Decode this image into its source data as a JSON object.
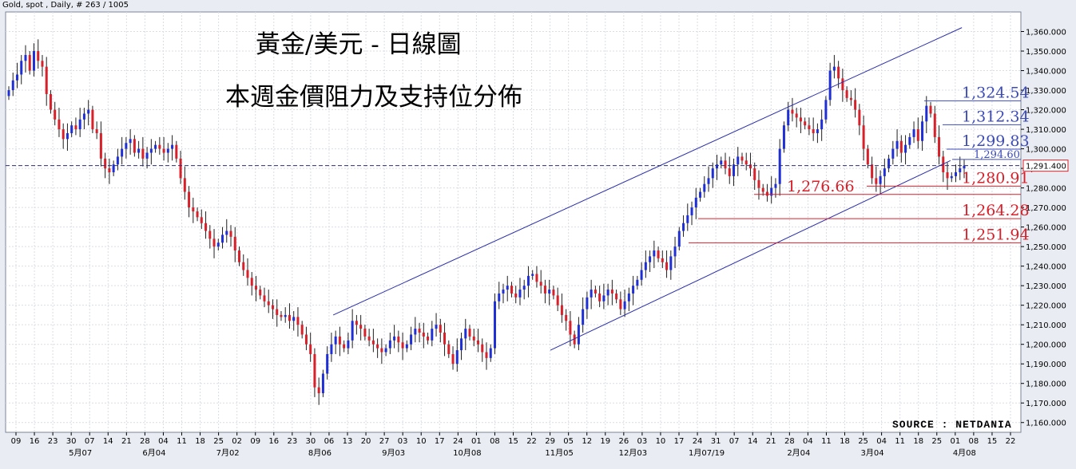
{
  "header": {
    "instrument": "Gold, spot , Daily, # 263 / 1005"
  },
  "titles": {
    "line1": "黃金/美元 - 日線圖",
    "line2": "本週金價阻力及支持位分佈"
  },
  "source": "SOURCE : NETDANIA",
  "colors": {
    "up": "#1f2fd6",
    "down": "#d8202a",
    "channel": "#2b2fa8",
    "resistance": "#3c4bb8",
    "support": "#d8202a",
    "grid": "#d9dde6",
    "bg": "#ffffff"
  },
  "chart_data": {
    "type": "candlestick",
    "ylim": [
      1155,
      1370
    ],
    "y_ticks": [
      "1,360.000",
      "1,350.000",
      "1,340.000",
      "1,330.000",
      "1,320.000",
      "1,310.000",
      "1,300.000",
      "1,290.000",
      "1,280.000",
      "1,270.000",
      "1,260.000",
      "1,250.000",
      "1,240.000",
      "1,230.000",
      "1,220.000",
      "1,210.000",
      "1,200.000",
      "1,190.000",
      "1,180.000",
      "1,170.000",
      "1,160.000"
    ],
    "x_ticks": [
      "09",
      "16",
      "23",
      "30",
      "07",
      "14",
      "21",
      "28",
      "04",
      "11",
      "18",
      "25",
      "02",
      "09",
      "16",
      "23",
      "30",
      "06",
      "13",
      "20",
      "27",
      "03",
      "10",
      "17",
      "24",
      "01",
      "08",
      "15",
      "22",
      "29",
      "05",
      "12",
      "19",
      "26",
      "03",
      "10",
      "17",
      "24",
      "31",
      "07",
      "14",
      "21",
      "28",
      "04",
      "11",
      "18",
      "25",
      "04",
      "11",
      "18",
      "25",
      "01",
      "08",
      "15",
      "22"
    ],
    "month_labels": [
      "5月07",
      "6月04",
      "7月02",
      "8月06",
      "9月03",
      "10月08",
      "11月05",
      "12月03",
      "1月07/19",
      "2月04",
      "3月04",
      "4月08"
    ],
    "current_price": {
      "label": "1,291.400",
      "value": 1291.4
    },
    "resistance_levels": [
      {
        "label": "1,324.54",
        "value": 1324.54
      },
      {
        "label": "1,312.34",
        "value": 1312.34
      },
      {
        "label": "1,299.83",
        "value": 1299.83
      },
      {
        "label": "1,294.60",
        "value": 1294.6
      }
    ],
    "support_levels": [
      {
        "label": "1,280.91",
        "value": 1280.91
      },
      {
        "label": "1,276.66",
        "value": 1276.66
      },
      {
        "label": "1,264.28",
        "value": 1264.28
      },
      {
        "label": "1,251.94",
        "value": 1251.94
      }
    ],
    "channel": {
      "upper": [
        {
          "date": "2018-08-28",
          "value": 1215
        },
        {
          "date": "2019-04-05",
          "value": 1362
        }
      ],
      "lower": [
        {
          "date": "2018-11-12",
          "value": 1197
        },
        {
          "date": "2019-04-01",
          "value": 1294
        }
      ]
    },
    "closes": [
      1330,
      1335,
      1338,
      1345,
      1348,
      1340,
      1350,
      1345,
      1342,
      1328,
      1320,
      1315,
      1310,
      1305,
      1308,
      1312,
      1310,
      1315,
      1318,
      1320,
      1310,
      1308,
      1295,
      1290,
      1288,
      1292,
      1296,
      1300,
      1303,
      1305,
      1298,
      1300,
      1295,
      1298,
      1300,
      1302,
      1300,
      1298,
      1300,
      1302,
      1295,
      1285,
      1278,
      1270,
      1268,
      1265,
      1262,
      1258,
      1254,
      1250,
      1252,
      1256,
      1258,
      1255,
      1248,
      1242,
      1238,
      1234,
      1230,
      1228,
      1225,
      1222,
      1220,
      1218,
      1215,
      1214,
      1215,
      1212,
      1214,
      1210,
      1205,
      1200,
      1195,
      1178,
      1175,
      1185,
      1195,
      1200,
      1204,
      1200,
      1198,
      1202,
      1212,
      1210,
      1208,
      1204,
      1202,
      1200,
      1198,
      1196,
      1198,
      1202,
      1204,
      1201,
      1198,
      1200,
      1205,
      1208,
      1206,
      1204,
      1202,
      1208,
      1210,
      1206,
      1200,
      1195,
      1190,
      1197,
      1203,
      1208,
      1204,
      1202,
      1200,
      1196,
      1193,
      1198,
      1222,
      1226,
      1228,
      1230,
      1226,
      1224,
      1228,
      1230,
      1235,
      1236,
      1232,
      1230,
      1226,
      1228,
      1225,
      1220,
      1215,
      1212,
      1205,
      1200,
      1210,
      1218,
      1224,
      1228,
      1226,
      1222,
      1225,
      1228,
      1226,
      1223,
      1218,
      1222,
      1226,
      1230,
      1233,
      1238,
      1242,
      1245,
      1248,
      1244,
      1242,
      1238,
      1245,
      1250,
      1258,
      1262,
      1266,
      1270,
      1275,
      1278,
      1282,
      1285,
      1290,
      1292,
      1294,
      1290,
      1286,
      1292,
      1296,
      1294,
      1292,
      1290,
      1284,
      1280,
      1278,
      1276,
      1280,
      1282,
      1300,
      1312,
      1320,
      1318,
      1316,
      1314,
      1312,
      1310,
      1308,
      1310,
      1315,
      1325,
      1340,
      1342,
      1336,
      1330,
      1326,
      1325,
      1320,
      1312,
      1300,
      1292,
      1285,
      1282,
      1286,
      1290,
      1295,
      1300,
      1304,
      1298,
      1302,
      1306,
      1310,
      1304,
      1314,
      1322,
      1318,
      1306,
      1296,
      1288,
      1285,
      1286,
      1288,
      1290,
      1291.4
    ]
  }
}
